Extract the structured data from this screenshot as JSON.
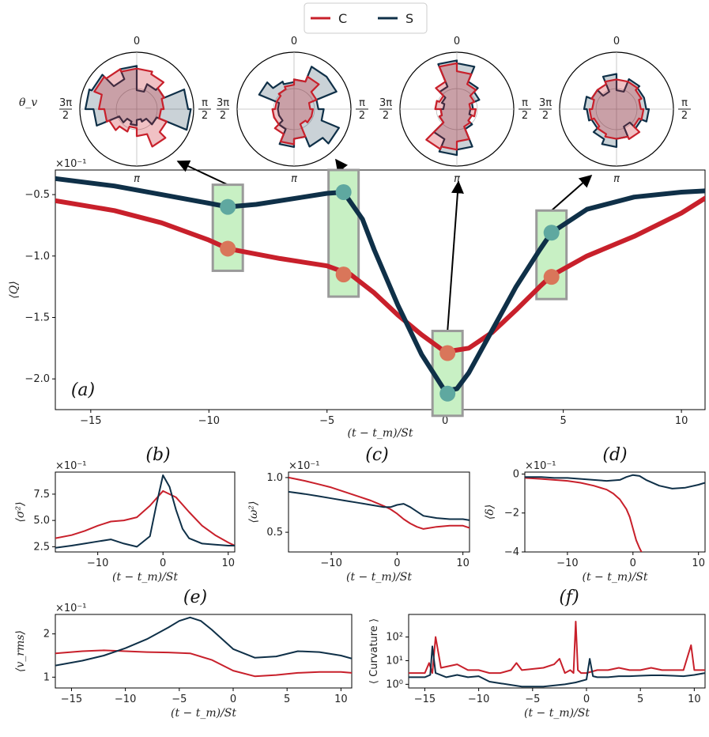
{
  "legend": [
    {
      "name": "C",
      "color": "#c8202b"
    },
    {
      "name": "S",
      "color": "#0f3048"
    }
  ],
  "colors": {
    "C": "#c8202b",
    "S": "#0f3048",
    "C_marker": "#d9765a",
    "S_marker": "#5fa8a0",
    "box_fill": "#c8f0c4",
    "box_edge": "#9a9a9a"
  },
  "polar": {
    "row_label": "θ_v",
    "tick_labels": {
      "top": "0",
      "right": "π/2",
      "bottom": "π",
      "left": "3π/2"
    }
  },
  "chart_data": [
    {
      "id": "a",
      "panel_label": "(a)",
      "type": "line",
      "xlabel": "(t − t_m)/St",
      "ylabel": "⟨Q⟩",
      "scale_label": "×10⁻¹",
      "xlim": [
        -16.5,
        11
      ],
      "ylim": [
        -2.25,
        -0.3
      ],
      "xticks": [
        -15,
        -10,
        -5,
        0,
        5,
        10
      ],
      "yticks": [
        -2.0,
        -1.5,
        -1.0,
        -0.5
      ],
      "ytick_labels": [
        "−2.0",
        "−1.5",
        "−1.0",
        "−0.5"
      ],
      "series": [
        {
          "name": "C",
          "x": [
            -16.5,
            -14,
            -12,
            -10,
            -9.2,
            -7,
            -5,
            -4,
            -3,
            -2,
            -1,
            0,
            1,
            2,
            3,
            4,
            4.5,
            6,
            8,
            10,
            11
          ],
          "y": [
            -0.55,
            -0.63,
            -0.73,
            -0.87,
            -0.94,
            -1.02,
            -1.08,
            -1.15,
            -1.3,
            -1.48,
            -1.64,
            -1.78,
            -1.75,
            -1.62,
            -1.44,
            -1.25,
            -1.16,
            -1.0,
            -0.84,
            -0.65,
            -0.53
          ]
        },
        {
          "name": "S",
          "x": [
            -16.5,
            -14,
            -12,
            -10,
            -9.2,
            -8,
            -6,
            -5,
            -4.3,
            -3.5,
            -3,
            -2,
            -1,
            0,
            0.5,
            1,
            2,
            3,
            4,
            4.5,
            6,
            8,
            10,
            11
          ],
          "y": [
            -0.37,
            -0.43,
            -0.5,
            -0.57,
            -0.6,
            -0.58,
            -0.52,
            -0.49,
            -0.48,
            -0.7,
            -0.95,
            -1.4,
            -1.8,
            -2.1,
            -2.08,
            -1.95,
            -1.6,
            -1.25,
            -0.95,
            -0.81,
            -0.62,
            -0.52,
            -0.48,
            -0.47
          ]
        }
      ],
      "highlights": [
        {
          "x": -9.2,
          "c": -0.94,
          "s": -0.6
        },
        {
          "x": -4.3,
          "c": -1.15,
          "s": -0.48
        },
        {
          "x": 0.1,
          "c": -1.79,
          "s": -2.12
        },
        {
          "x": 4.5,
          "c": -1.17,
          "s": -0.81
        }
      ],
      "rose_diagrams": [
        {
          "C": [
            0.75,
            0.7,
            0.55,
            0.5,
            0.45,
            0.6,
            0.75,
            0.5,
            0.35,
            0.45,
            0.55,
            0.6,
            0.7,
            0.85,
            0.8,
            0.75
          ],
          "S": [
            0.35,
            0.5,
            0.55,
            0.95,
            1.0,
            0.4,
            0.25,
            0.2,
            0.3,
            0.25,
            0.35,
            0.8,
            0.95,
            0.9,
            0.6,
            0.8
          ]
        },
        {
          "C": [
            0.55,
            0.65,
            0.45,
            0.3,
            0.35,
            0.35,
            0.3,
            0.55,
            0.65,
            0.5,
            0.4,
            0.4,
            0.35,
            0.35,
            0.4,
            0.45
          ],
          "S": [
            0.55,
            0.85,
            0.85,
            0.45,
            0.55,
            0.9,
            0.75,
            0.55,
            0.7,
            0.4,
            0.3,
            0.3,
            0.3,
            0.7,
            0.55,
            0.5
          ]
        },
        {
          "C": [
            0.7,
            0.5,
            0.35,
            0.25,
            0.35,
            0.3,
            0.35,
            0.6,
            0.75,
            0.8,
            0.35,
            0.3,
            0.4,
            0.35,
            0.55,
            0.85
          ],
          "S": [
            0.85,
            0.55,
            0.45,
            0.3,
            0.25,
            0.3,
            0.4,
            0.75,
            0.85,
            0.6,
            0.35,
            0.3,
            0.25,
            0.3,
            0.45,
            0.9
          ]
        },
        {
          "C": [
            0.55,
            0.55,
            0.5,
            0.45,
            0.5,
            0.45,
            0.6,
            0.55,
            0.55,
            0.5,
            0.45,
            0.5,
            0.45,
            0.5,
            0.5,
            0.55
          ],
          "S": [
            0.35,
            0.6,
            0.55,
            0.55,
            0.6,
            0.5,
            0.35,
            0.55,
            0.7,
            0.6,
            0.5,
            0.55,
            0.6,
            0.5,
            0.35,
            0.65
          ]
        }
      ]
    },
    {
      "id": "b",
      "panel_label": "(b)",
      "type": "line",
      "xlabel": "(t − t_m)/St",
      "ylabel": "⟨σ²⟩",
      "scale_label": "×10⁻¹",
      "xlim": [
        -16.5,
        11
      ],
      "ylim": [
        2.0,
        9.6
      ],
      "xticks": [
        -10,
        0,
        10
      ],
      "yticks": [
        2.5,
        5.0,
        7.5
      ],
      "ytick_labels": [
        "2.5",
        "5.0",
        "7.5"
      ],
      "series": [
        {
          "name": "C",
          "x": [
            -16.5,
            -14,
            -12,
            -10,
            -8,
            -6,
            -4,
            -2,
            0,
            2,
            4,
            6,
            8,
            10,
            11
          ],
          "y": [
            3.3,
            3.6,
            4.0,
            4.5,
            4.9,
            5.0,
            5.3,
            6.4,
            7.8,
            7.2,
            5.8,
            4.5,
            3.6,
            2.9,
            2.6
          ]
        },
        {
          "name": "S",
          "x": [
            -16.5,
            -14,
            -12,
            -10,
            -8,
            -6,
            -4,
            -2,
            -1,
            0,
            1,
            2,
            3,
            4,
            6,
            8,
            10,
            11
          ],
          "y": [
            2.4,
            2.6,
            2.8,
            3.0,
            3.2,
            2.8,
            2.5,
            3.5,
            6.5,
            9.3,
            8.2,
            6.0,
            4.2,
            3.3,
            2.8,
            2.7,
            2.6,
            2.6
          ]
        }
      ]
    },
    {
      "id": "c",
      "panel_label": "(c)",
      "type": "line",
      "xlabel": "(t − t_m)/St",
      "ylabel": "⟨ω²⟩",
      "scale_label": "×10⁻¹",
      "xlim": [
        -16.5,
        11
      ],
      "ylim": [
        0.32,
        1.05
      ],
      "xticks": [
        -10,
        0,
        10
      ],
      "yticks": [
        0.5,
        1.0
      ],
      "ytick_labels": [
        "0.5",
        "1.0"
      ],
      "series": [
        {
          "name": "C",
          "x": [
            -16.5,
            -14,
            -12,
            -10,
            -8,
            -6,
            -4,
            -2,
            -1,
            0,
            1,
            2,
            3,
            4,
            6,
            8,
            10,
            11
          ],
          "y": [
            1.0,
            0.97,
            0.94,
            0.91,
            0.87,
            0.83,
            0.79,
            0.74,
            0.71,
            0.67,
            0.62,
            0.58,
            0.55,
            0.53,
            0.55,
            0.56,
            0.56,
            0.54
          ]
        },
        {
          "name": "S",
          "x": [
            -16.5,
            -14,
            -12,
            -10,
            -8,
            -6,
            -4,
            -2,
            -1,
            0,
            1,
            2,
            3,
            4,
            6,
            8,
            10,
            11
          ],
          "y": [
            0.87,
            0.85,
            0.83,
            0.81,
            0.79,
            0.77,
            0.75,
            0.73,
            0.73,
            0.75,
            0.76,
            0.73,
            0.69,
            0.65,
            0.63,
            0.62,
            0.62,
            0.61
          ]
        }
      ]
    },
    {
      "id": "d",
      "panel_label": "(d)",
      "type": "line",
      "xlabel": "(t − t_m)/St",
      "ylabel": "⟨δ⟩",
      "scale_label": "×10⁻¹",
      "xlim": [
        -16.5,
        11
      ],
      "ylim": [
        -4.0,
        0.1
      ],
      "xticks": [
        -10,
        0,
        10
      ],
      "yticks": [
        -4,
        -2,
        0
      ],
      "ytick_labels": [
        "−4",
        "−2",
        "0"
      ],
      "series": [
        {
          "name": "C",
          "x": [
            -16.5,
            -14,
            -12,
            -10,
            -8,
            -6,
            -4,
            -3,
            -2,
            -1,
            -0.5,
            0,
            0.5,
            1,
            1.3
          ],
          "y": [
            -0.2,
            -0.25,
            -0.3,
            -0.35,
            -0.45,
            -0.6,
            -0.8,
            -1.0,
            -1.3,
            -1.8,
            -2.2,
            -2.8,
            -3.4,
            -3.8,
            -4.0
          ]
        },
        {
          "name": "S",
          "x": [
            -16.5,
            -14,
            -12,
            -10,
            -8,
            -6,
            -4,
            -2,
            -1,
            0,
            1,
            2,
            4,
            6,
            8,
            10,
            11
          ],
          "y": [
            -0.15,
            -0.15,
            -0.2,
            -0.2,
            -0.25,
            -0.3,
            -0.35,
            -0.3,
            -0.15,
            -0.05,
            -0.1,
            -0.3,
            -0.6,
            -0.75,
            -0.7,
            -0.55,
            -0.45
          ]
        }
      ]
    },
    {
      "id": "e",
      "panel_label": "(e)",
      "type": "line",
      "xlabel": "(t − t_m)/St",
      "ylabel": "⟨v_rms⟩",
      "scale_label": "×10⁻¹",
      "xlim": [
        -16.5,
        11
      ],
      "ylim": [
        0.75,
        2.45
      ],
      "xticks": [
        -15,
        -10,
        -5,
        0,
        5,
        10
      ],
      "yticks": [
        1,
        2
      ],
      "ytick_labels": [
        "1",
        "2"
      ],
      "series": [
        {
          "name": "C",
          "x": [
            -16.5,
            -14,
            -12,
            -10,
            -8,
            -6,
            -4,
            -2,
            0,
            2,
            4,
            6,
            8,
            10,
            11
          ],
          "y": [
            1.55,
            1.6,
            1.62,
            1.6,
            1.58,
            1.57,
            1.55,
            1.4,
            1.15,
            1.02,
            1.05,
            1.1,
            1.12,
            1.12,
            1.1
          ]
        },
        {
          "name": "S",
          "x": [
            -16.5,
            -14,
            -12,
            -10,
            -8,
            -6,
            -5,
            -4,
            -3,
            -2,
            0,
            2,
            4,
            6,
            8,
            10,
            11
          ],
          "y": [
            1.27,
            1.38,
            1.5,
            1.67,
            1.88,
            2.15,
            2.3,
            2.38,
            2.3,
            2.1,
            1.65,
            1.45,
            1.48,
            1.6,
            1.58,
            1.5,
            1.43
          ]
        }
      ]
    },
    {
      "id": "f",
      "panel_label": "(f)",
      "type": "line",
      "log_y": true,
      "xlabel": "(t − t_m)/St",
      "ylabel": "⟨ Curvature ⟩",
      "xlim": [
        -16.5,
        11
      ],
      "ylim": [
        0.7,
        900
      ],
      "xticks": [
        -15,
        -10,
        -5,
        0,
        5,
        10
      ],
      "yticks": [
        1,
        10,
        100
      ],
      "ytick_labels": [
        "10⁰",
        "10¹",
        "10²"
      ],
      "series": [
        {
          "name": "C",
          "x": [
            -16.5,
            -15,
            -14.6,
            -14.3,
            -14,
            -13.5,
            -12,
            -11,
            -10,
            -9,
            -8,
            -7,
            -6.5,
            -6,
            -4,
            -3,
            -2.5,
            -2,
            -1.5,
            -1.2,
            -1,
            -0.8,
            -0.5,
            0,
            1,
            2,
            3,
            4,
            5,
            6,
            7,
            8,
            9,
            9.7,
            10,
            11
          ],
          "y": [
            3,
            3,
            8,
            3,
            100,
            5,
            7,
            4,
            4,
            3,
            3,
            4,
            8,
            4,
            5,
            7,
            12,
            3,
            4,
            3,
            450,
            4,
            3,
            3,
            4,
            4,
            5,
            4,
            4,
            5,
            4,
            4,
            4,
            45,
            4,
            4
          ]
        },
        {
          "name": "S",
          "x": [
            -16.5,
            -15,
            -14.5,
            -14.3,
            -14,
            -13,
            -12,
            -11,
            -10,
            -9,
            -8,
            -6,
            -4,
            -2,
            -1,
            0,
            0.3,
            0.6,
            1,
            2,
            3,
            4,
            5,
            6,
            7,
            8,
            9,
            10,
            11
          ],
          "y": [
            2,
            2,
            2.5,
            40,
            3,
            2,
            2.5,
            2,
            2.2,
            1.3,
            1.1,
            0.8,
            0.8,
            1,
            1.2,
            1.6,
            12,
            2.2,
            2,
            2,
            2.2,
            2.2,
            2.3,
            2.4,
            2.4,
            2.3,
            2.2,
            2.5,
            3
          ]
        }
      ]
    }
  ]
}
